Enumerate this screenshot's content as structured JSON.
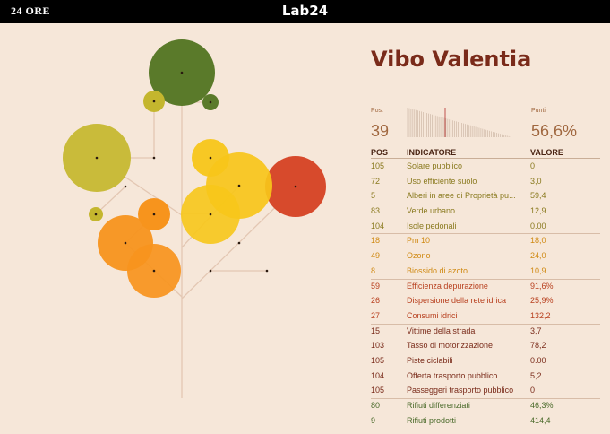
{
  "header": {
    "left_logo": "24 ORE",
    "center_logo": "Lab24"
  },
  "title": "Vibo Valentia",
  "summary": {
    "pos_label": "Pos.",
    "pos_value": "39",
    "punti_label": "Punti",
    "punti_value": "56,6%"
  },
  "table": {
    "headers": {
      "pos": "POS",
      "indicatore": "INDICATORE",
      "valore": "VALORE"
    },
    "rows": [
      {
        "pos": "105",
        "ind": "Solare pubblico",
        "val": "0",
        "group": 0
      },
      {
        "pos": "72",
        "ind": "Uso efficiente suolo",
        "val": "3,0",
        "group": 0
      },
      {
        "pos": "5",
        "ind": "Alberi in aree di Proprietà pu...",
        "val": "59,4",
        "group": 0
      },
      {
        "pos": "83",
        "ind": "Verde urbano",
        "val": "12,9",
        "group": 0
      },
      {
        "pos": "104",
        "ind": "Isole pedonali",
        "val": "0.00",
        "group": 0
      },
      {
        "pos": "18",
        "ind": "Pm 10",
        "val": "18,0",
        "group": 1
      },
      {
        "pos": "49",
        "ind": "Ozono",
        "val": "24,0",
        "group": 1
      },
      {
        "pos": "8",
        "ind": "Biossido di azoto",
        "val": "10,9",
        "group": 1
      },
      {
        "pos": "59",
        "ind": "Efficienza depurazione",
        "val": "91,6%",
        "group": 2
      },
      {
        "pos": "26",
        "ind": "Dispersione della rete idrica",
        "val": "25,9%",
        "group": 2
      },
      {
        "pos": "27",
        "ind": "Consumi idrici",
        "val": "132,2",
        "group": 2
      },
      {
        "pos": "15",
        "ind": "Vittime della strada",
        "val": "3,7",
        "group": 3
      },
      {
        "pos": "103",
        "ind": "Tasso di motorizzazione",
        "val": "78,2",
        "group": 3
      },
      {
        "pos": "105",
        "ind": "Piste ciclabili",
        "val": "0.00",
        "group": 3
      },
      {
        "pos": "104",
        "ind": "Offerta trasporto pubblico",
        "val": "5,2",
        "group": 3
      },
      {
        "pos": "105",
        "ind": "Passeggeri trasporto pubblico",
        "val": "0",
        "group": 3
      },
      {
        "pos": "80",
        "ind": "Rifiuti differenziati",
        "val": "46,3%",
        "group": 4
      },
      {
        "pos": "9",
        "ind": "Rifiuti prodotti",
        "val": "414,4",
        "group": 4
      }
    ]
  },
  "colors": {
    "group_text": [
      "#8a7a1f",
      "#d08a14",
      "#b8401f",
      "#7a2b1a",
      "#4a6a2a"
    ],
    "trunk": "#e3c7b3",
    "title": "#7a2b1a"
  }
}
